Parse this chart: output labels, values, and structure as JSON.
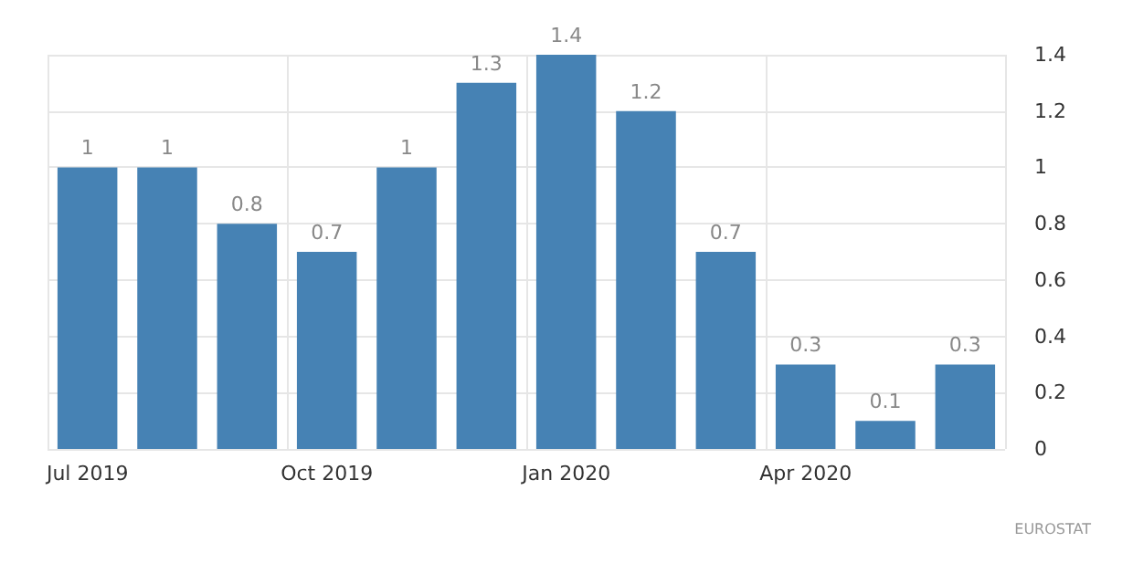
{
  "chart_data": {
    "type": "bar",
    "categories": [
      "Jul 2019",
      null,
      null,
      "Oct 2019",
      null,
      null,
      "Jan 2020",
      null,
      null,
      "Apr 2020",
      null,
      null
    ],
    "values": [
      1,
      1,
      0.8,
      0.7,
      1,
      1.3,
      1.4,
      1.2,
      0.7,
      0.3,
      0.1,
      0.3
    ],
    "color": "#4682b4",
    "ylim": [
      0,
      1.4
    ],
    "yticks": [
      0,
      0.2,
      0.4,
      0.6,
      0.8,
      1,
      1.2,
      1.4
    ],
    "grid": true,
    "data_labels": true,
    "annotations": [
      "EUROSTAT"
    ]
  }
}
